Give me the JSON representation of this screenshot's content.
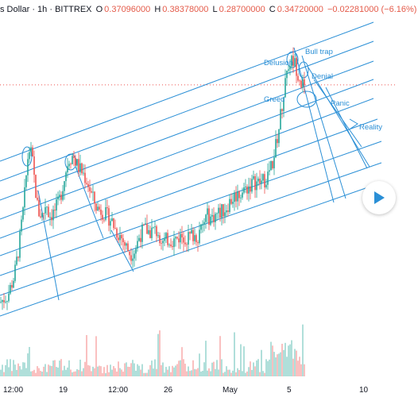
{
  "header": {
    "title": "s Dollar · 1h · BITTREX",
    "open_label": "O",
    "open": "0.37096000",
    "high_label": "H",
    "high": "0.38378000",
    "low_label": "L",
    "low": "0.28700000",
    "close_label": "C",
    "close": "0.34720000",
    "change": "−0.02281000 (−6.16%)"
  },
  "colors": {
    "up": "#26a69a",
    "down": "#ef5350",
    "lines": "#2a8fd6",
    "price_line": "#ef5350"
  },
  "play_icon": "play-icon",
  "chart_data": {
    "type": "candlestick",
    "x_ticks": [
      "12:00",
      "19",
      "12:00",
      "26",
      "May",
      "5",
      "10"
    ],
    "price_path": [
      [
        0,
        0.14
      ],
      [
        10,
        0.15
      ],
      [
        18,
        0.175
      ],
      [
        24,
        0.215
      ],
      [
        30,
        0.27
      ],
      [
        36,
        0.345
      ],
      [
        40,
        0.335
      ],
      [
        44,
        0.295
      ],
      [
        48,
        0.26
      ],
      [
        54,
        0.255
      ],
      [
        58,
        0.275
      ],
      [
        62,
        0.255
      ],
      [
        68,
        0.26
      ],
      [
        74,
        0.272
      ],
      [
        80,
        0.3
      ],
      [
        86,
        0.33
      ],
      [
        92,
        0.335
      ],
      [
        98,
        0.32
      ],
      [
        104,
        0.312
      ],
      [
        110,
        0.3
      ],
      [
        116,
        0.28
      ],
      [
        122,
        0.265
      ],
      [
        128,
        0.262
      ],
      [
        134,
        0.255
      ],
      [
        140,
        0.25
      ],
      [
        146,
        0.235
      ],
      [
        152,
        0.228
      ],
      [
        158,
        0.215
      ],
      [
        164,
        0.205
      ],
      [
        170,
        0.21
      ],
      [
        176,
        0.23
      ],
      [
        182,
        0.237
      ],
      [
        188,
        0.234
      ],
      [
        194,
        0.236
      ],
      [
        200,
        0.232
      ],
      [
        206,
        0.218
      ],
      [
        212,
        0.225
      ],
      [
        218,
        0.222
      ],
      [
        224,
        0.226
      ],
      [
        230,
        0.229
      ],
      [
        236,
        0.225
      ],
      [
        242,
        0.23
      ],
      [
        248,
        0.228
      ],
      [
        254,
        0.238
      ],
      [
        260,
        0.255
      ],
      [
        266,
        0.252
      ],
      [
        272,
        0.257
      ],
      [
        278,
        0.26
      ],
      [
        284,
        0.265
      ],
      [
        290,
        0.275
      ],
      [
        296,
        0.282
      ],
      [
        302,
        0.285
      ],
      [
        308,
        0.29
      ],
      [
        314,
        0.295
      ],
      [
        320,
        0.3
      ],
      [
        326,
        0.298
      ],
      [
        332,
        0.302
      ],
      [
        338,
        0.31
      ],
      [
        344,
        0.33
      ],
      [
        350,
        0.365
      ],
      [
        356,
        0.41
      ],
      [
        360,
        0.445
      ],
      [
        364,
        0.458
      ],
      [
        368,
        0.462
      ],
      [
        372,
        0.455
      ],
      [
        376,
        0.44
      ],
      [
        380,
        0.43
      ],
      [
        384,
        0.422
      ]
    ],
    "price_line_value": 0.4285,
    "annotations": [
      "Delusion",
      "Bull trap",
      "Denial",
      "Greed",
      "Panic",
      "Reality"
    ]
  }
}
